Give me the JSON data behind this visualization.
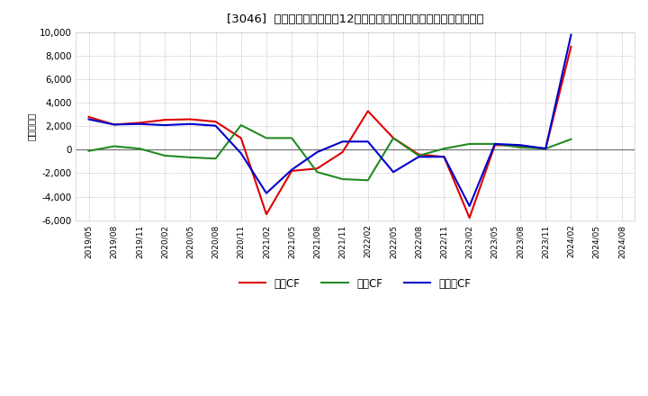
{
  "title": "[3046]  キャッシュフローの12か月移動合計の対前年同期増減額の推移",
  "ylabel": "（百万円）",
  "background_color": "#ffffff",
  "plot_bg_color": "#ffffff",
  "grid_color": "#aaaaaa",
  "ylim": [
    -6000,
    10000
  ],
  "yticks": [
    -6000,
    -4000,
    -2000,
    0,
    2000,
    4000,
    6000,
    8000,
    10000
  ],
  "x_labels": [
    "2019/05",
    "2019/08",
    "2019/11",
    "2020/02",
    "2020/05",
    "2020/08",
    "2020/11",
    "2021/02",
    "2021/05",
    "2021/08",
    "2021/11",
    "2022/02",
    "2022/05",
    "2022/08",
    "2022/11",
    "2023/02",
    "2023/05",
    "2023/08",
    "2023/11",
    "2024/02",
    "2024/05",
    "2024/08"
  ],
  "series": {
    "営業CF": {
      "color": "#dd0000",
      "values": [
        2800,
        2150,
        2300,
        2550,
        2600,
        2400,
        1000,
        -5500,
        -1800,
        -1600,
        -200,
        3300,
        1000,
        -400,
        -600,
        -5800,
        400,
        350,
        100,
        8800,
        null,
        null
      ]
    },
    "投資CF": {
      "color": "#228B22",
      "values": [
        -100,
        300,
        100,
        -500,
        -650,
        -750,
        2100,
        1000,
        1000,
        -1900,
        -2500,
        -2600,
        1000,
        -500,
        100,
        500,
        500,
        200,
        100,
        900,
        null,
        null
      ]
    },
    "フリーCF": {
      "color": "#0000cc",
      "values": [
        2600,
        2150,
        2200,
        2100,
        2200,
        2050,
        -300,
        -3700,
        -1700,
        -200,
        700,
        700,
        -1900,
        -600,
        -600,
        -4800,
        500,
        400,
        100,
        9800,
        null,
        null
      ]
    }
  },
  "legend_labels": [
    "営業CF",
    "投資CF",
    "フリーCF"
  ],
  "legend_colors": [
    "#dd0000",
    "#228B22",
    "#0000cc"
  ]
}
